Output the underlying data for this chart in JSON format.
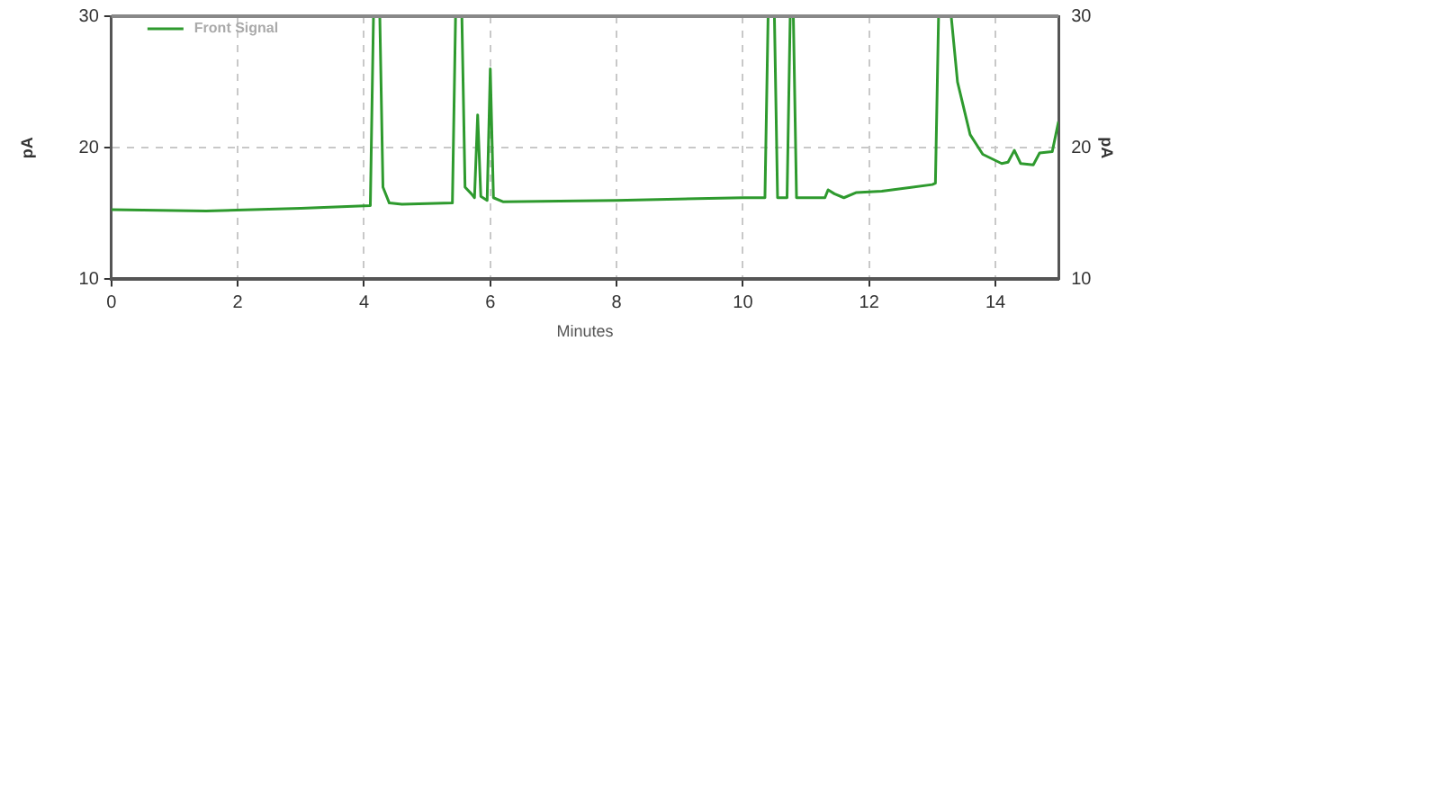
{
  "chart_data": {
    "type": "line",
    "xlabel": "Minutes",
    "ylabel": "pA",
    "y2label": "pA",
    "xlim": [
      0,
      15
    ],
    "xticks": [
      0,
      2,
      4,
      6,
      8,
      10,
      12,
      14
    ],
    "ylim": [
      10,
      30
    ],
    "yticks": [
      10,
      20,
      30
    ],
    "y2lim": [
      10,
      30
    ],
    "y2ticks": [
      10,
      20,
      30
    ],
    "grid": true,
    "legend": "top left",
    "marker": "none",
    "line_style": "solid",
    "series": [
      {
        "name": "Front Signal",
        "color": "#2e9a2e",
        "x": [
          0,
          1.5,
          3,
          4.1,
          4.15,
          4.25,
          4.3,
          4.4,
          4.6,
          5.4,
          5.45,
          5.55,
          5.6,
          5.7,
          5.75,
          5.8,
          5.85,
          5.95,
          6.0,
          6.05,
          6.2,
          8,
          10,
          10.35,
          10.4,
          10.5,
          10.55,
          10.7,
          10.75,
          10.8,
          10.85,
          11.3,
          11.35,
          11.45,
          11.6,
          11.8,
          12.2,
          13,
          13.05,
          13.1,
          13.3,
          13.4,
          13.6,
          13.8,
          14.1,
          14.2,
          14.3,
          14.4,
          14.6,
          14.7,
          14.9,
          15
        ],
        "values": [
          15.3,
          15.2,
          15.4,
          15.6,
          30,
          30,
          17,
          15.8,
          15.7,
          15.8,
          30,
          30,
          17,
          16.5,
          16.2,
          22.5,
          16.3,
          16,
          26,
          16.2,
          15.9,
          16,
          16.2,
          16.2,
          30,
          30,
          16.2,
          16.2,
          30,
          30,
          16.2,
          16.2,
          16.8,
          16.5,
          16.2,
          16.6,
          16.7,
          17.2,
          17.3,
          30,
          30,
          25,
          21,
          19.5,
          18.8,
          18.9,
          19.8,
          18.8,
          18.7,
          19.6,
          19.7,
          22
        ]
      }
    ]
  }
}
